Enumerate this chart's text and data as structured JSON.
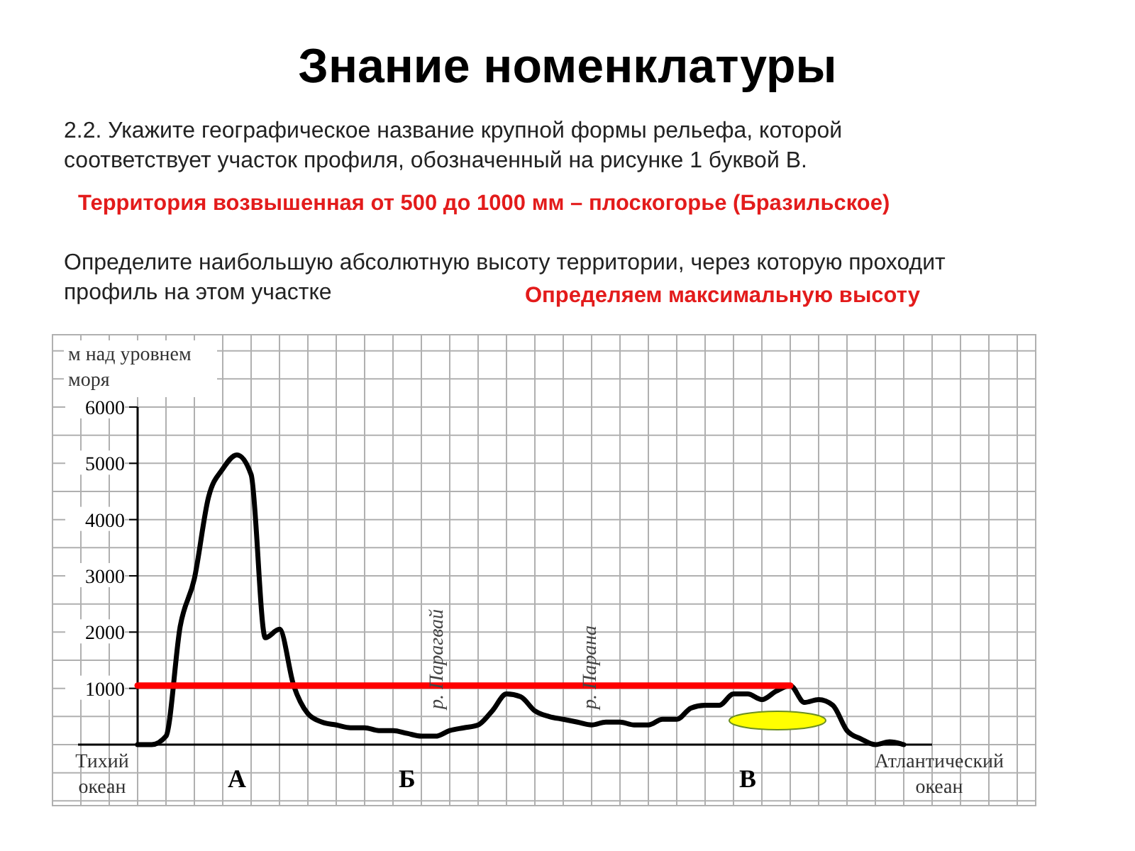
{
  "chart_data": {
    "type": "line",
    "title": "Знание номенклатуры",
    "ylabel": "м над уровнем моря",
    "annotations": [
      "2.2. Укажите географическое название крупной формы рельефа, которой соответствует участок профиля, обозначенный на рисунке 1 буквой В.",
      "Территория возвышенная от 500 до 1000 мм – плоскогорье (Бразильское)",
      "Определите наибольшую абсолютную высоту территории, через которую проходит профиль на этом участке",
      "Определяем максимальную высоту",
      "Тихий океан",
      "Атлантический океан",
      "р. Парагвай",
      "р. Парана"
    ],
    "categories": [
      null,
      null,
      null,
      null,
      null,
      null,
      null,
      "А",
      null,
      null,
      null,
      null,
      null,
      null,
      null,
      null,
      null,
      null,
      null,
      "Б",
      null,
      null,
      null,
      null,
      null,
      null,
      null,
      null,
      null,
      null,
      null,
      null,
      null,
      null,
      null,
      null,
      null,
      null,
      null,
      null,
      null,
      null,
      null,
      "В",
      null,
      null,
      null,
      null,
      null,
      null,
      null,
      null,
      null,
      null,
      null,
      null,
      null
    ],
    "series": [
      {
        "color": "#000000",
        "values": [
          0,
          0,
          150,
          2100,
          2950,
          4400,
          4900,
          5150,
          4800,
          1900,
          2050,
          1050,
          550,
          400,
          350,
          300,
          300,
          250,
          250,
          200,
          150,
          150,
          250,
          300,
          350,
          600,
          900,
          850,
          600,
          500,
          450,
          400,
          350,
          400,
          400,
          350,
          350,
          450,
          450,
          650,
          700,
          700,
          900,
          900,
          800,
          950,
          1050,
          750,
          800,
          700,
          250,
          100,
          0,
          50,
          0,
          null,
          null
        ]
      },
      {
        "color": "#ff0000",
        "values": [
          1050,
          1050,
          1050,
          1050,
          1050,
          1050,
          1050,
          1050,
          1050,
          1050,
          1050,
          1050,
          1050,
          1050,
          1050,
          1050,
          1050,
          1050,
          1050,
          1050,
          1050,
          1050,
          1050,
          1050,
          1050,
          1050,
          1050,
          1050,
          1050,
          1050,
          1050,
          1050,
          1050,
          1050,
          1050,
          1050,
          1050,
          1050,
          1050,
          1050,
          1050,
          1050,
          1050,
          1050,
          1050,
          1050,
          1050,
          null,
          null,
          null,
          null,
          null,
          null,
          null,
          null,
          null,
          null
        ]
      }
    ],
    "ylim": [
      0,
      6000
    ],
    "yticks": [
      1000,
      2000,
      3000,
      4000,
      5000,
      6000
    ],
    "grid": true
  }
}
